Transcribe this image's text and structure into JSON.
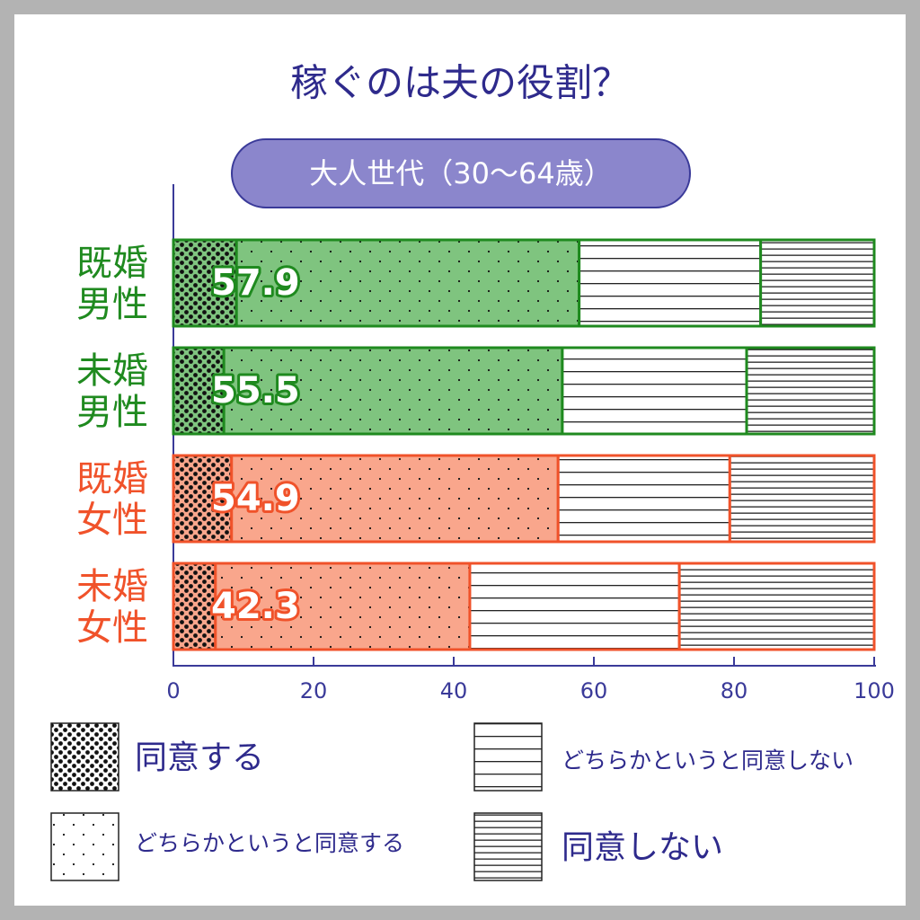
{
  "chart_data": {
    "type": "stacked-bar-horizontal",
    "title": "稼ぐのは夫の役割？",
    "subtitle": "大人世代（30〜64歳）",
    "categories": [
      "既婚男性",
      "未婚男性",
      "既婚女性",
      "未婚女性"
    ],
    "category_colors": [
      "#1f8a1f",
      "#1f8a1f",
      "#f0522a",
      "#f0522a"
    ],
    "category_fills": [
      "#7fc47f",
      "#7fc47f",
      "#f9a68c",
      "#f9a68c"
    ],
    "series": [
      {
        "name": "同意する",
        "pattern": "dense-dots",
        "values": [
          9.0,
          7.2,
          8.3,
          6.0
        ]
      },
      {
        "name": "どちらかというと同意する",
        "pattern": "sparse-dots",
        "values": [
          48.9,
          48.3,
          46.6,
          36.3
        ]
      },
      {
        "name": "どちらかというと同意しない",
        "pattern": "sparse-lines",
        "values": [
          25.9,
          26.3,
          24.5,
          29.9
        ]
      },
      {
        "name": "同意しない",
        "pattern": "dense-lines",
        "values": [
          16.2,
          18.2,
          20.6,
          27.8
        ]
      }
    ],
    "agree_totals": [
      57.9,
      55.5,
      54.9,
      42.3
    ],
    "xlim": [
      0,
      100
    ],
    "xticks": [
      0,
      20,
      40,
      60,
      80,
      100
    ]
  }
}
